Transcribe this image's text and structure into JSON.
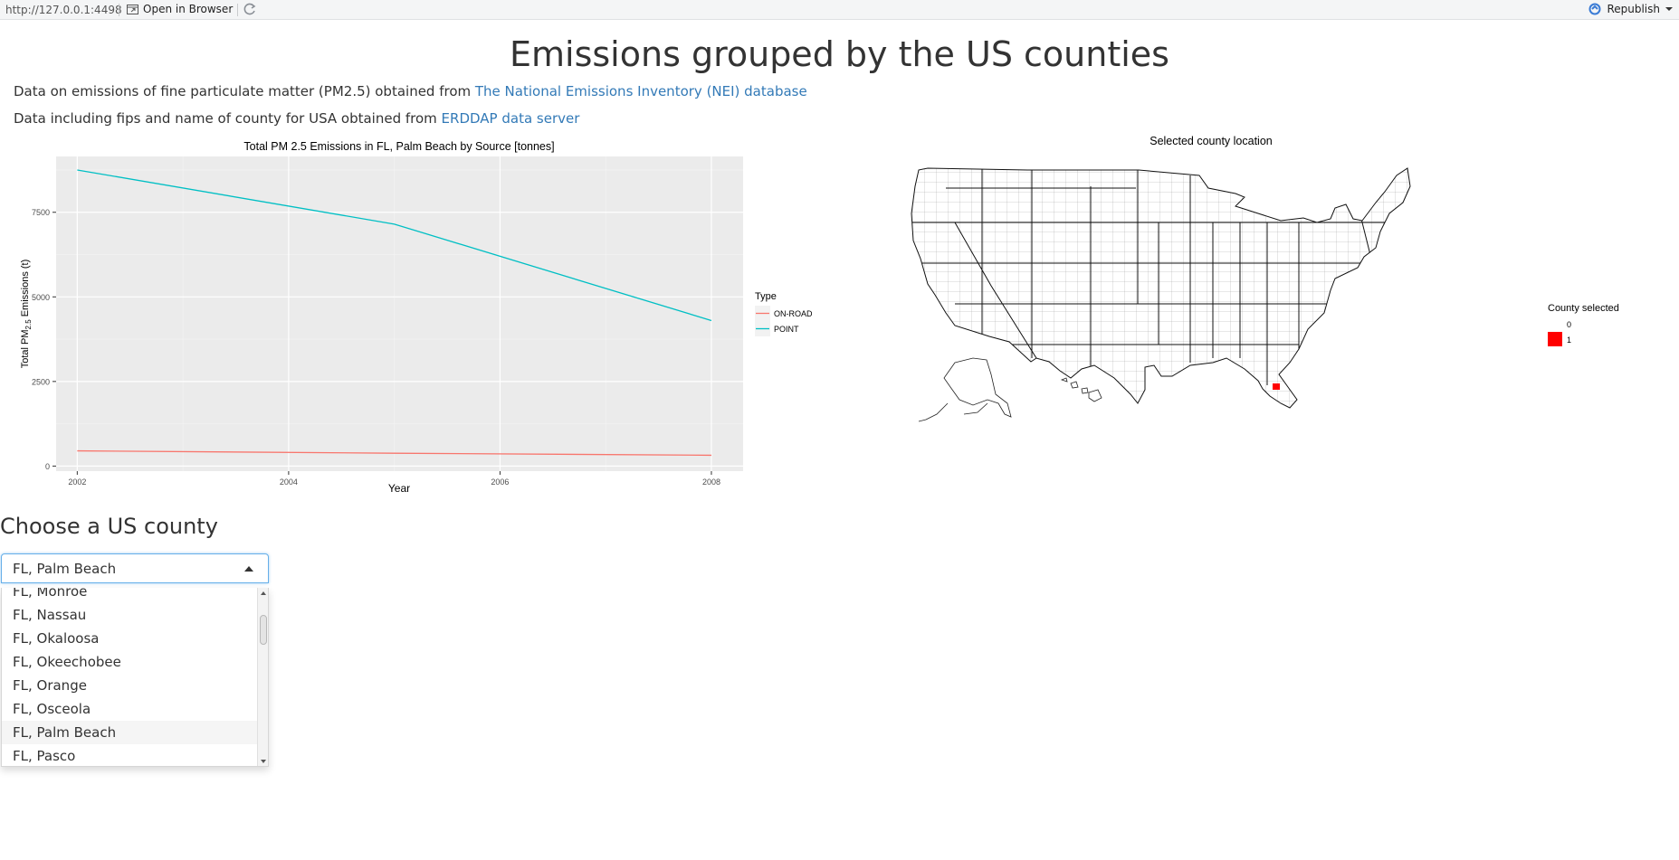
{
  "topbar": {
    "url": "http://127.0.0.1:4498",
    "open_label": "Open in Browser",
    "republish_label": "Republish"
  },
  "page": {
    "title": "Emissions grouped by the US counties",
    "para1_text": "Data on emissions of fine particulate matter (PM2.5) obtained from ",
    "para1_link": "The National Emissions Inventory (NEI) database",
    "para2_text": "Data including fips and name of county for USA obtained from ",
    "para2_link": "ERDDAP data server"
  },
  "chart_data": {
    "type": "line",
    "title": "Total PM 2.5 Emissions in FL, Palm Beach by Source [tonnes]",
    "xlabel": "Year",
    "ylabel_prefix": "Total PM",
    "ylabel_sub": "2.5",
    "ylabel_suffix": " Emissions (t)",
    "x": [
      2002,
      2005,
      2008
    ],
    "xlim": [
      2001.8,
      2008.3
    ],
    "ylim": [
      -150,
      9150
    ],
    "x_ticks": [
      2002,
      2004,
      2006,
      2008
    ],
    "y_ticks": [
      0,
      2500,
      5000,
      7500
    ],
    "grid": true,
    "legend_title": "Type",
    "legend_position": "right",
    "series": [
      {
        "name": "ON-ROAD",
        "color": "#f8766d",
        "values": [
          450,
          380,
          320
        ]
      },
      {
        "name": "POINT",
        "color": "#00bfc4",
        "values": [
          8750,
          7150,
          4300
        ]
      }
    ]
  },
  "map": {
    "title": "Selected county location",
    "legend_title": "County selected",
    "legend_items": [
      {
        "label": "0",
        "color": "#ffffff"
      },
      {
        "label": "1",
        "color": "#ff0000"
      }
    ]
  },
  "selector": {
    "heading": "Choose a US county",
    "selected": "FL, Palm Beach",
    "options": [
      "FL, Monroe",
      "FL, Nassau",
      "FL, Okaloosa",
      "FL, Okeechobee",
      "FL, Orange",
      "FL, Osceola",
      "FL, Palm Beach",
      "FL, Pasco"
    ]
  }
}
